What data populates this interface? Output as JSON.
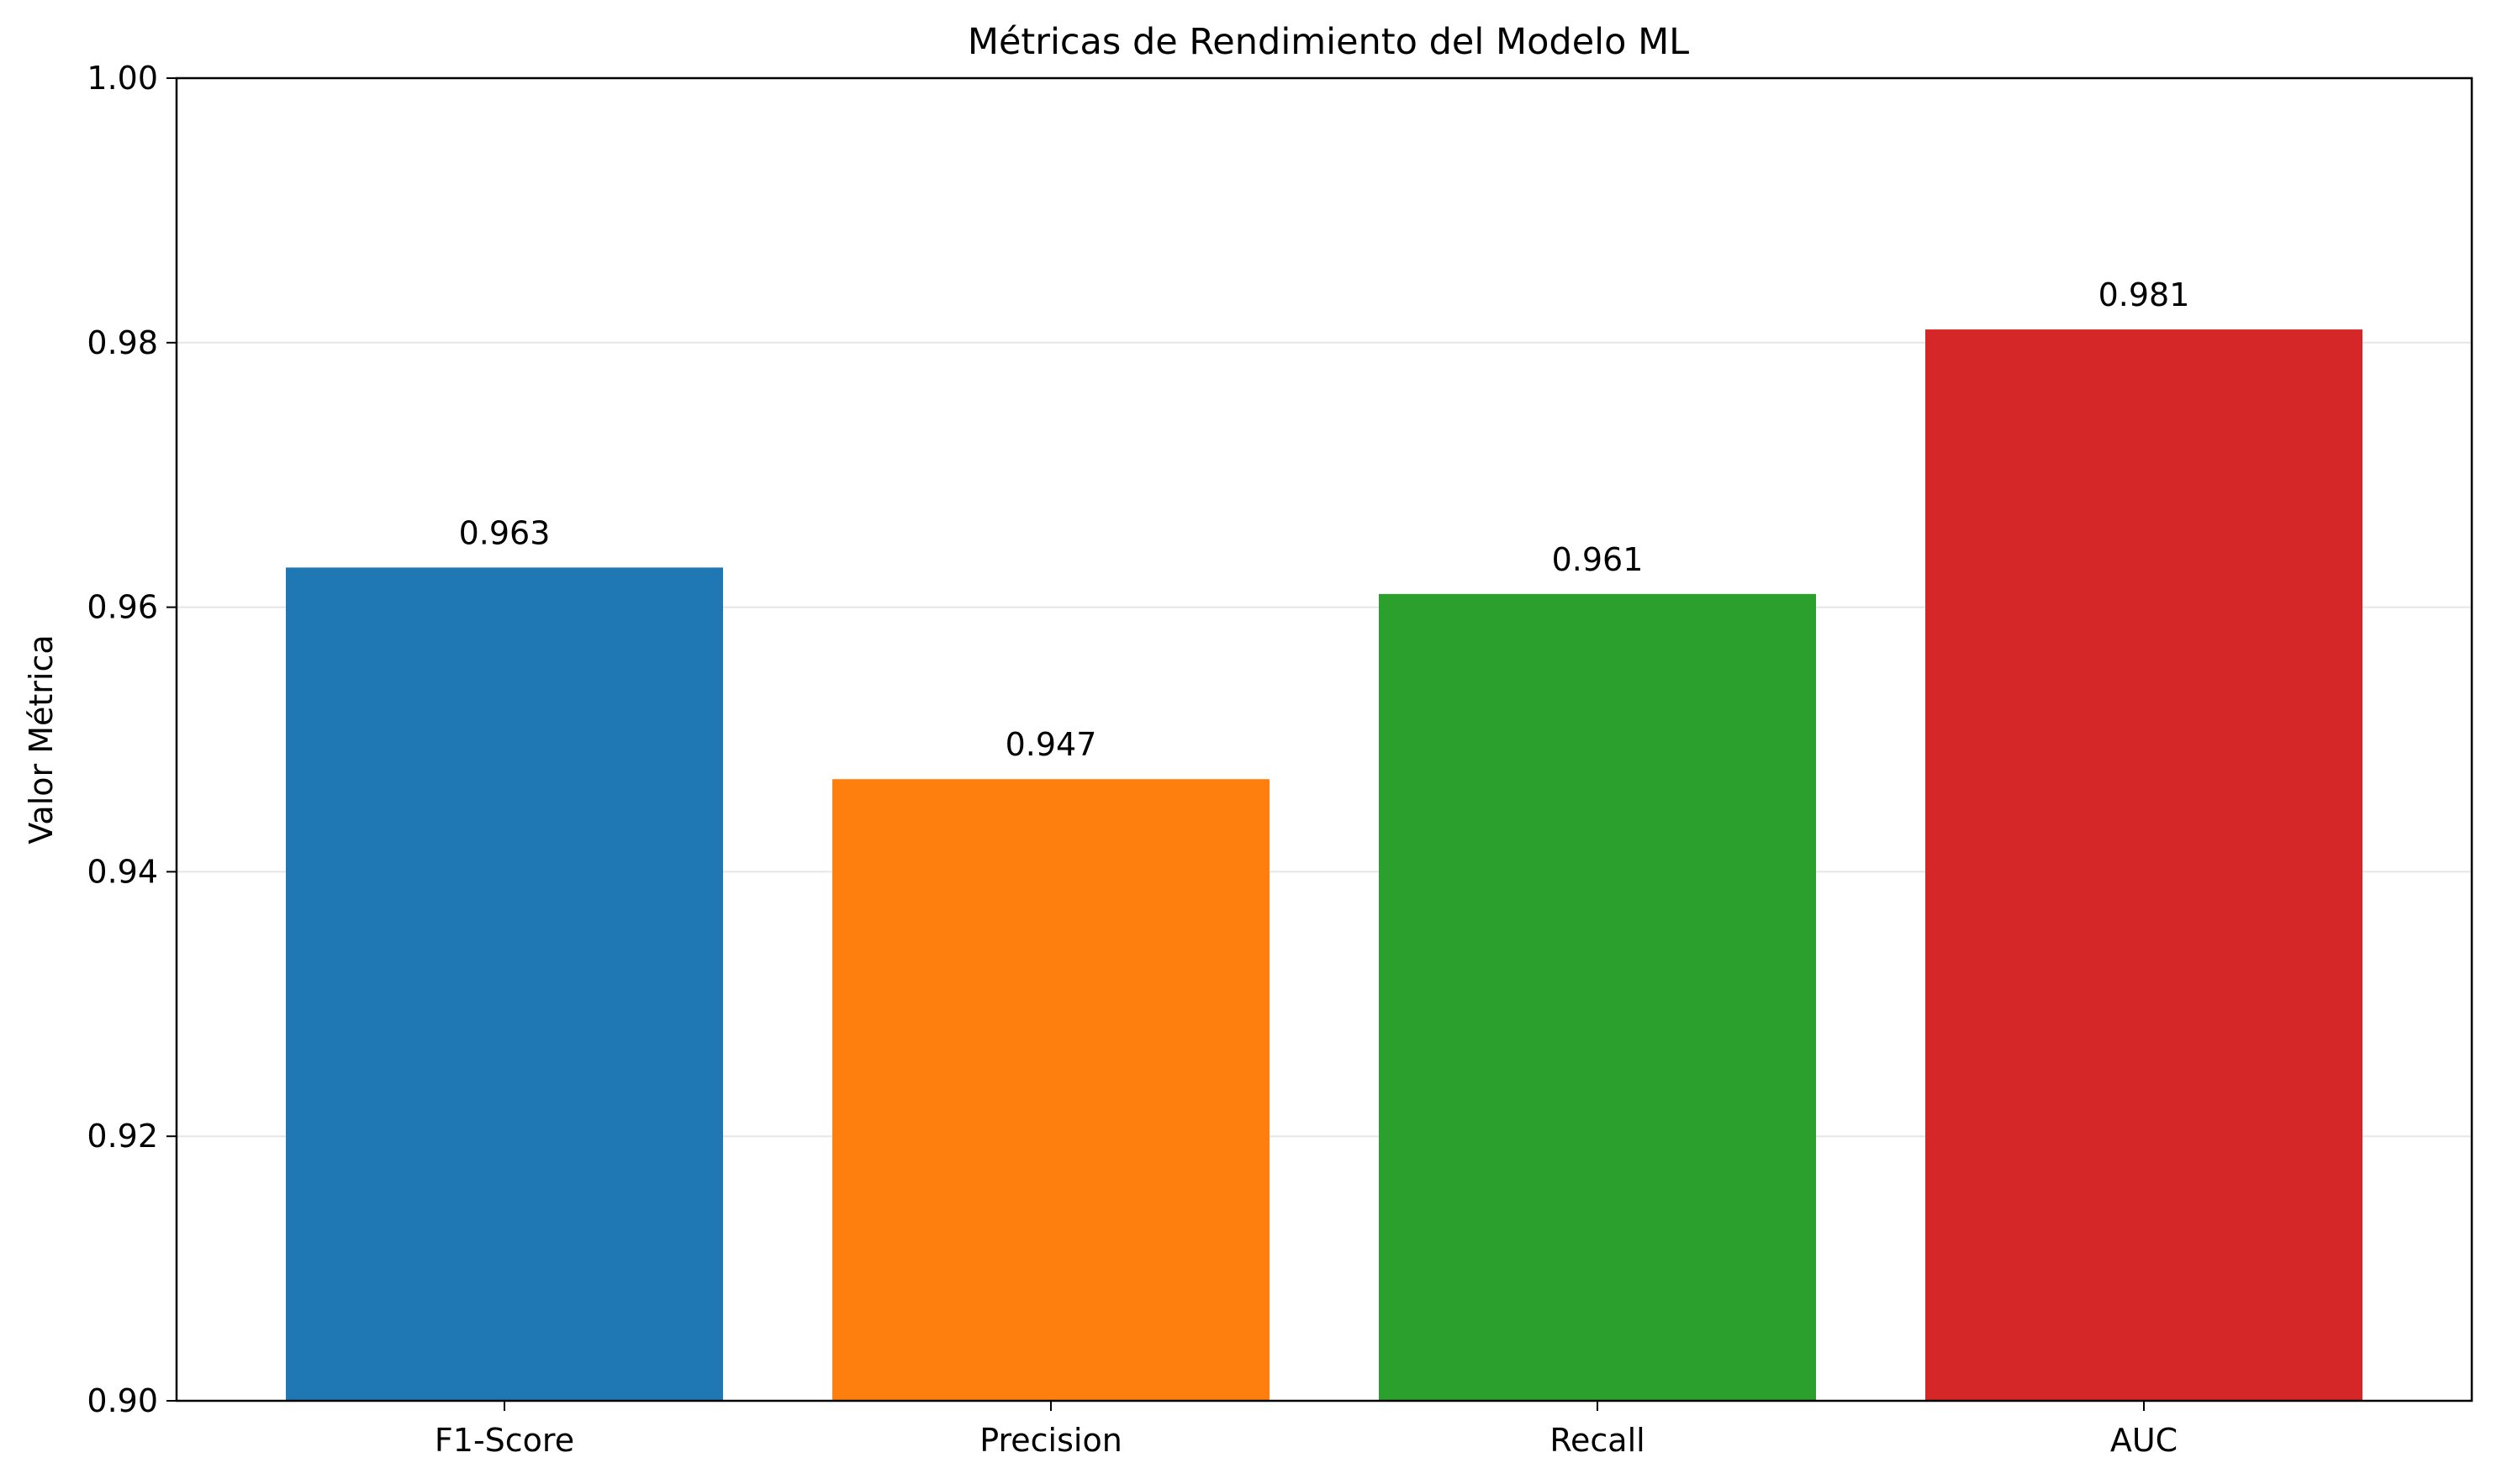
{
  "chart_data": {
    "type": "bar",
    "title": "Métricas de Rendimiento del Modelo ML",
    "xlabel": "",
    "ylabel": "Valor Métrica",
    "categories": [
      "F1-Score",
      "Precision",
      "Recall",
      "AUC"
    ],
    "values": [
      0.963,
      0.947,
      0.961,
      0.981
    ],
    "data_labels": [
      "0.963",
      "0.947",
      "0.961",
      "0.981"
    ],
    "colors": [
      "#1f77b4",
      "#ff7f0e",
      "#2ca02c",
      "#d62728"
    ],
    "ylim": [
      0.9,
      1.0
    ],
    "yticks": [
      0.9,
      0.92,
      0.94,
      0.96,
      0.98,
      1.0
    ],
    "ytick_labels": [
      "0.90",
      "0.92",
      "0.94",
      "0.96",
      "0.98",
      "1.00"
    ],
    "grid": "y",
    "legend": "none"
  }
}
